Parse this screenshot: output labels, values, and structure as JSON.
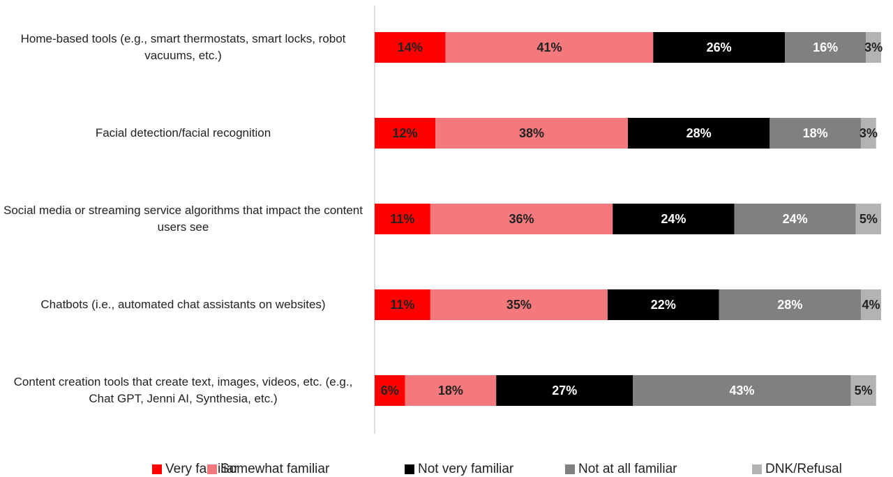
{
  "chart_data": {
    "type": "stacked_bar_horizontal",
    "categories": [
      "Home-based tools (e.g., smart thermostats, smart locks, robot vacuums, etc.)",
      "Facial detection/facial recognition",
      "Social media or streaming service algorithms that impact the content users see",
      "Chatbots (i.e., automated chat assistants on websites)",
      "Content creation tools that create text, images, videos, etc. (e.g., Chat GPT, Jenni AI, Synthesia, etc.)"
    ],
    "xlim": [
      0,
      100
    ],
    "series": [
      {
        "name": "Very familiar",
        "color": "#ff0000",
        "values": [
          14,
          12,
          11,
          11,
          6
        ],
        "value_labels": [
          "14%",
          "12%",
          "11%",
          "11%",
          "6%"
        ]
      },
      {
        "name": "Somewhat familiar",
        "color": "#f4797c",
        "values": [
          41,
          38,
          36,
          35,
          18
        ],
        "value_labels": [
          "41%",
          "38%",
          "36%",
          "35%",
          "18%"
        ]
      },
      {
        "name": "Not very familiar",
        "color": "#000000",
        "values": [
          26,
          28,
          24,
          22,
          27
        ],
        "value_labels": [
          "26%",
          "28%",
          "24%",
          "22%",
          "27%"
        ]
      },
      {
        "name": "Not at all familiar",
        "color": "#808080",
        "values": [
          16,
          18,
          24,
          28,
          43
        ],
        "value_labels": [
          "16%",
          "18%",
          "24%",
          "28%",
          "43%"
        ]
      },
      {
        "name": "DNK/Refusal",
        "color": "#b3b3b3",
        "values": [
          3,
          3,
          5,
          4,
          5
        ],
        "value_labels": [
          "3%",
          "3%",
          "5%",
          "4%",
          "5%"
        ]
      }
    ],
    "legend": "bottom"
  }
}
